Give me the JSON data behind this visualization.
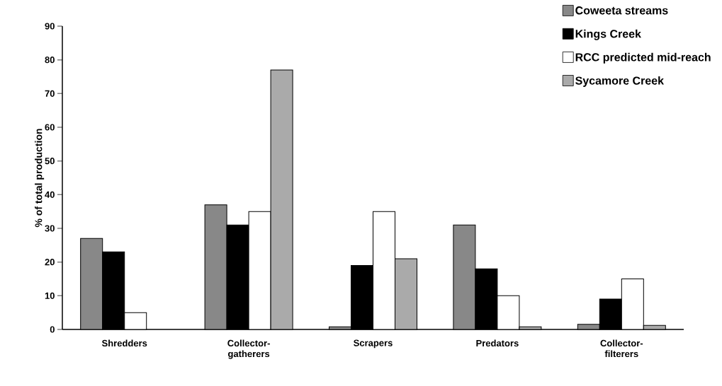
{
  "chart_data": {
    "type": "bar",
    "ylabel": "% of total production",
    "categories": [
      "Shredders",
      "Collector-gatherers",
      "Scrapers",
      "Predators",
      "Collector-filterers"
    ],
    "series": [
      {
        "name": "Coweeta streams",
        "color": "#888888",
        "values": [
          27,
          37,
          0.8,
          31,
          1.5
        ]
      },
      {
        "name": "Kings Creek",
        "color": "#000000",
        "values": [
          23,
          31,
          19,
          18,
          9
        ]
      },
      {
        "name": "RCC predicted mid-reach",
        "color": "#ffffff",
        "values": [
          5,
          35,
          35,
          10,
          15
        ]
      },
      {
        "name": "Sycamore Creek",
        "color": "#aaaaaa",
        "values": [
          null,
          77,
          21,
          0.8,
          1.2
        ]
      }
    ],
    "ylim": [
      0,
      90
    ],
    "yticks": [
      0,
      10,
      20,
      30,
      40,
      50,
      60,
      70,
      80,
      90
    ],
    "grid": false,
    "legend": "top right"
  }
}
